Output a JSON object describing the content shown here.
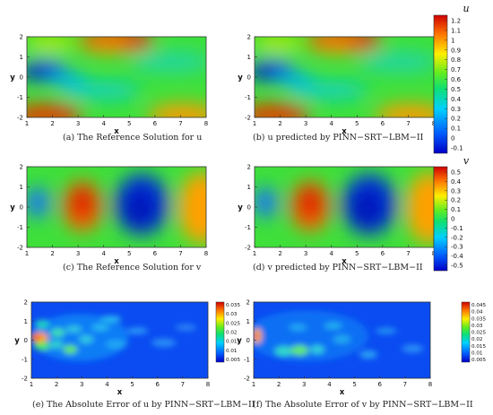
{
  "chart_data": [
    {
      "type": "heatmap",
      "field": "u",
      "title": "(a) The Reference Solution for u",
      "xlabel": "x",
      "ylabel": "y",
      "xlim": [
        1,
        8
      ],
      "ylim": [
        -2,
        2
      ],
      "xticks": [
        "1",
        "2",
        "3",
        "4",
        "5",
        "6",
        "7",
        "8"
      ],
      "yticks": [
        "2",
        "1",
        "0",
        "-1",
        "-2"
      ]
    },
    {
      "type": "heatmap",
      "field": "u",
      "title": "(b) u predicted by PINN−SRT−LBM−II",
      "xlabel": "x",
      "ylabel": "y",
      "xlim": [
        1,
        8
      ],
      "ylim": [
        -2,
        2
      ],
      "xticks": [
        "1",
        "2",
        "3",
        "4",
        "5",
        "6",
        "7",
        "8"
      ],
      "yticks": [
        "2",
        "1",
        "0",
        "-1",
        "-2"
      ]
    },
    {
      "type": "heatmap",
      "field": "v",
      "title": "(c) The Reference Solution for v",
      "xlabel": "x",
      "ylabel": "y",
      "xlim": [
        1,
        8
      ],
      "ylim": [
        -2,
        2
      ],
      "xticks": [
        "1",
        "2",
        "3",
        "4",
        "5",
        "6",
        "7",
        "8"
      ],
      "yticks": [
        "2",
        "1",
        "0",
        "-1",
        "-2"
      ]
    },
    {
      "type": "heatmap",
      "field": "v",
      "title": "(d) v predicted by PINN−SRT−LBM−II",
      "xlabel": "x",
      "ylabel": "y",
      "xlim": [
        1,
        8
      ],
      "ylim": [
        -2,
        2
      ],
      "xticks": [
        "1",
        "2",
        "3",
        "4",
        "5",
        "6",
        "7",
        "8"
      ],
      "yticks": [
        "2",
        "1",
        "0",
        "-1",
        "-2"
      ]
    },
    {
      "type": "heatmap",
      "field": "error_u",
      "title": "(e) The Absolute Error of u by PINN−SRT−LBM−II",
      "xlabel": "x",
      "ylabel": "y",
      "xlim": [
        1,
        8
      ],
      "ylim": [
        -2,
        2
      ],
      "xticks": [
        "1",
        "2",
        "3",
        "4",
        "5",
        "6",
        "7",
        "8"
      ],
      "yticks": [
        "2",
        "1",
        "0",
        "-1",
        "-2"
      ],
      "colorbar": {
        "min": 0.005,
        "max": 0.035,
        "ticks": [
          "0.035",
          "0.03",
          "0.025",
          "0.02",
          "0.015",
          "0.01",
          "0.005"
        ]
      }
    },
    {
      "type": "heatmap",
      "field": "error_v",
      "title": "(f) The Absolute Error of v by PINN−SRT−LBM−II",
      "xlabel": "x",
      "ylabel": "y",
      "xlim": [
        1,
        8
      ],
      "ylim": [
        -2,
        2
      ],
      "xticks": [
        "1",
        "2",
        "3",
        "4",
        "5",
        "6",
        "7",
        "8"
      ],
      "yticks": [
        "2",
        "1",
        "0",
        "-1",
        "-2"
      ],
      "colorbar": {
        "min": 0.005,
        "max": 0.045,
        "ticks": [
          "0.045",
          "0.04",
          "0.035",
          "0.03",
          "0.025",
          "0.02",
          "0.015",
          "0.01",
          "0.005"
        ]
      }
    }
  ],
  "colorbars": {
    "u": {
      "title": "u",
      "min": -0.1,
      "max": 1.2,
      "ticks": [
        "1.2",
        "1.1",
        "1",
        "0.9",
        "0.8",
        "0.7",
        "0.6",
        "0.5",
        "0.4",
        "0.3",
        "0.2",
        "0.1",
        "0",
        "-0.1"
      ]
    },
    "v": {
      "title": "v",
      "min": -0.5,
      "max": 0.5,
      "ticks": [
        "0.5",
        "0.4",
        "0.3",
        "0.2",
        "0.1",
        "0",
        "-0.1",
        "-0.2",
        "-0.3",
        "-0.4",
        "-0.5"
      ]
    }
  }
}
